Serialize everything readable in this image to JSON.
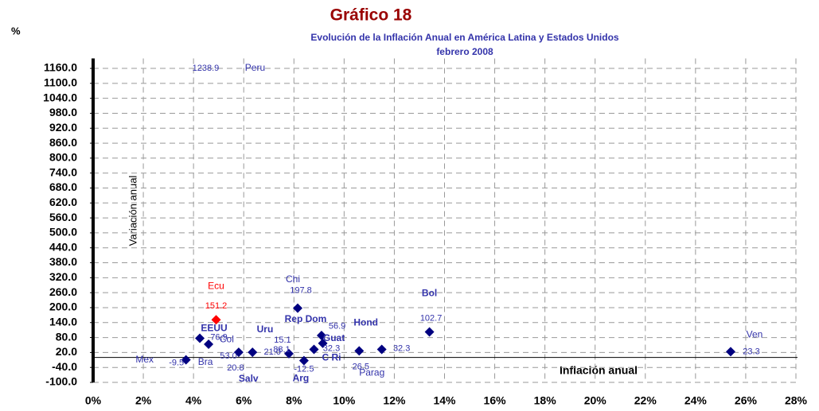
{
  "chart_data": {
    "type": "scatter",
    "title": "Gráfico 18",
    "subtitle": "Evolución de la Inflación Anual en América Latina y Estados Unidos",
    "subtitle2": "febrero 2008",
    "unit_label": "%",
    "x_label": "Inflación anual",
    "y_label": "Variación anual",
    "xlim": [
      0,
      28
    ],
    "xticks": [
      {
        "value": 0,
        "label": "0%"
      },
      {
        "value": 2,
        "label": "2%"
      },
      {
        "value": 4,
        "label": "4%"
      },
      {
        "value": 6,
        "label": "6%"
      },
      {
        "value": 8,
        "label": "8%"
      },
      {
        "value": 10,
        "label": "10%"
      },
      {
        "value": 12,
        "label": "12%"
      },
      {
        "value": 14,
        "label": "14%"
      },
      {
        "value": 16,
        "label": "16%"
      },
      {
        "value": 18,
        "label": "18%"
      },
      {
        "value": 20,
        "label": "20%"
      },
      {
        "value": 22,
        "label": "22%"
      },
      {
        "value": 24,
        "label": "24%"
      },
      {
        "value": 26,
        "label": "26%"
      },
      {
        "value": 28,
        "label": "28%"
      }
    ],
    "ylim": [
      -100,
      1200
    ],
    "yticks": [
      {
        "value": -100,
        "label": "-100.0"
      },
      {
        "value": -40,
        "label": "-40.0"
      },
      {
        "value": 20,
        "label": "20.0"
      },
      {
        "value": 80,
        "label": "80.0"
      },
      {
        "value": 140,
        "label": "140.0"
      },
      {
        "value": 200,
        "label": "200.0"
      },
      {
        "value": 260,
        "label": "260.0"
      },
      {
        "value": 320,
        "label": "320.0"
      },
      {
        "value": 380,
        "label": "380.0"
      },
      {
        "value": 440,
        "label": "440.0"
      },
      {
        "value": 500,
        "label": "500.0"
      },
      {
        "value": 560,
        "label": "560.0"
      },
      {
        "value": 620,
        "label": "620.0"
      },
      {
        "value": 680,
        "label": "680.0"
      },
      {
        "value": 740,
        "label": "740.0"
      },
      {
        "value": 800,
        "label": "800.0"
      },
      {
        "value": 860,
        "label": "860.0"
      },
      {
        "value": 920,
        "label": "920.0"
      },
      {
        "value": 980,
        "label": "980.0"
      },
      {
        "value": 1040,
        "label": "1040.0"
      },
      {
        "value": 1100,
        "label": "1100.0"
      },
      {
        "value": 1160,
        "label": "1160.0"
      }
    ],
    "grid": true,
    "points": [
      {
        "name": "Mex",
        "x": 3.7,
        "y": -9.5,
        "value_label": "-9.5",
        "color": "#000080"
      },
      {
        "name": "EEUU",
        "x": 4.25,
        "y": 76.9,
        "value_label": "76.9",
        "color": "#000080"
      },
      {
        "name": "Bra",
        "x": 4.6,
        "y": 53.0,
        "value_label": "53.0",
        "color": "#000080"
      },
      {
        "name": "Ecu",
        "x": 4.9,
        "y": 151.2,
        "value_label": "151.2",
        "color": "#ff0000"
      },
      {
        "name": "Col",
        "x": 5.8,
        "y": 20.8,
        "value_label": "20.8",
        "color": "#000080"
      },
      {
        "name": "Salv",
        "x": 6.35,
        "y": 21.0,
        "value_label": "21.0",
        "color": "#000080"
      },
      {
        "name": "Uru",
        "x": 7.8,
        "y": 15.1,
        "value_label": "15.1",
        "color": "#000080"
      },
      {
        "name": "Chi",
        "x": 8.15,
        "y": 197.8,
        "value_label": "197.8",
        "color": "#000080"
      },
      {
        "name": "Arg",
        "x": 8.4,
        "y": -12.5,
        "value_label": "-12.5",
        "color": "#000080"
      },
      {
        "name": "C Ri",
        "x": 8.8,
        "y": 32.3,
        "value_label": "32.3",
        "color": "#000080"
      },
      {
        "name": "Rep Dom",
        "x": 9.1,
        "y": 88.1,
        "value_label": "88.1",
        "color": "#000080"
      },
      {
        "name": "Guat",
        "x": 9.15,
        "y": 56.9,
        "value_label": "56.9",
        "color": "#000080"
      },
      {
        "name": "Parag",
        "x": 10.6,
        "y": 26.5,
        "value_label": "26.5",
        "color": "#000080"
      },
      {
        "name": "Hond",
        "x": 11.5,
        "y": 32.3,
        "value_label": "32.3",
        "color": "#000080"
      },
      {
        "name": "Bol",
        "x": 13.4,
        "y": 102.7,
        "value_label": "102.7",
        "color": "#000080"
      },
      {
        "name": "Ven",
        "x": 25.4,
        "y": 23.3,
        "value_label": "23.3",
        "color": "#000080"
      },
      {
        "name": "Peru",
        "x": 5.5,
        "y": 1238.9,
        "value_label": "1238.9",
        "color": "#000080"
      }
    ]
  }
}
